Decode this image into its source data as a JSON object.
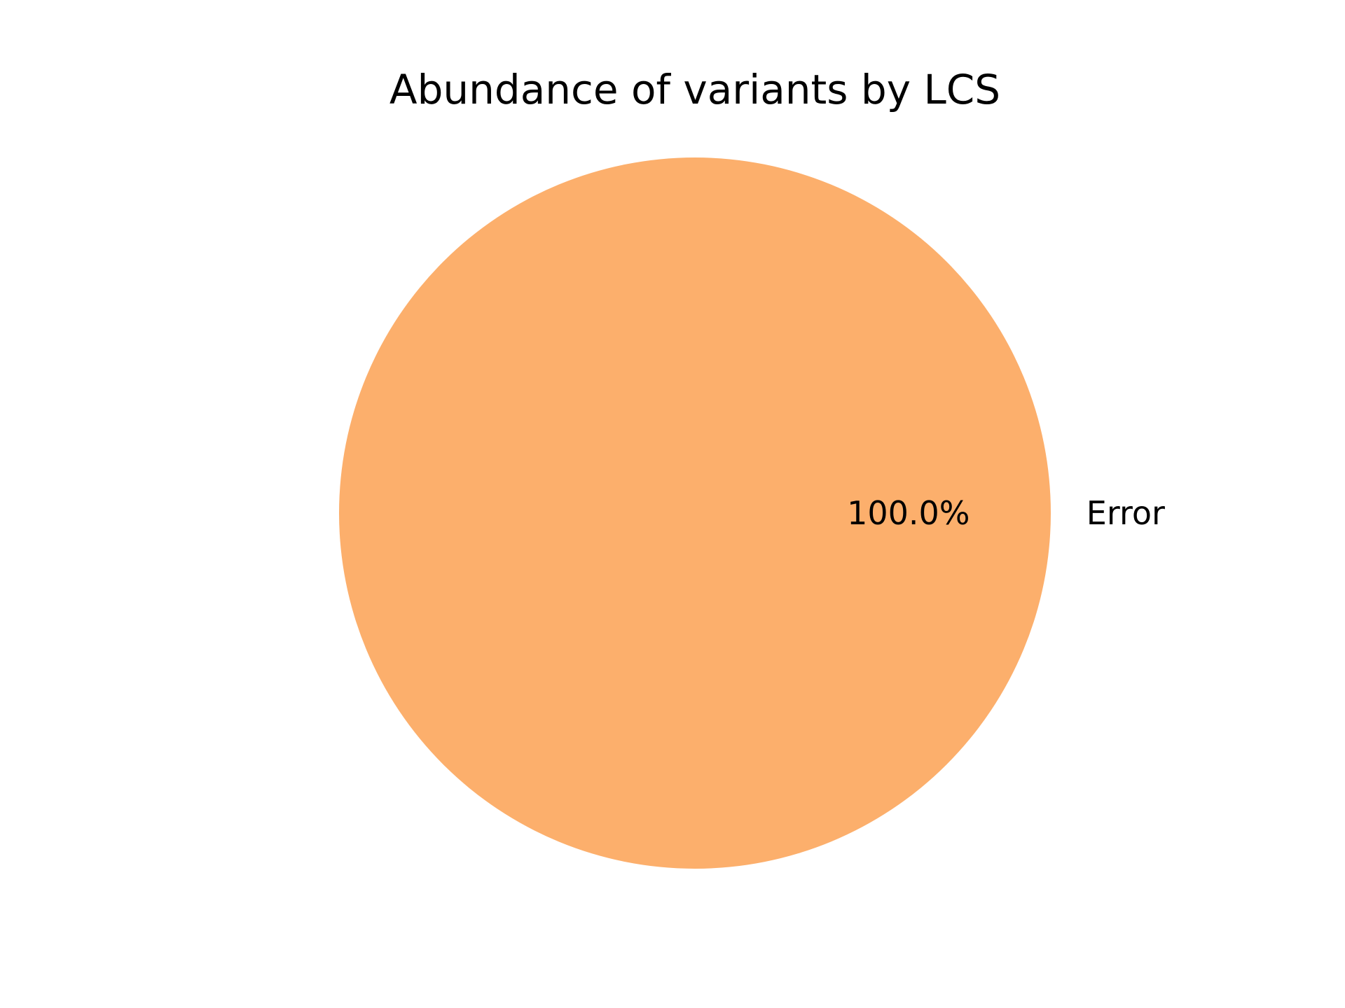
{
  "chart_data": {
    "type": "pie",
    "title": "Abundance of variants by LCS",
    "slices": [
      {
        "label": "Error",
        "value": 100.0,
        "pct_label": "100.0%",
        "color": "#fcaf6c"
      }
    ]
  }
}
